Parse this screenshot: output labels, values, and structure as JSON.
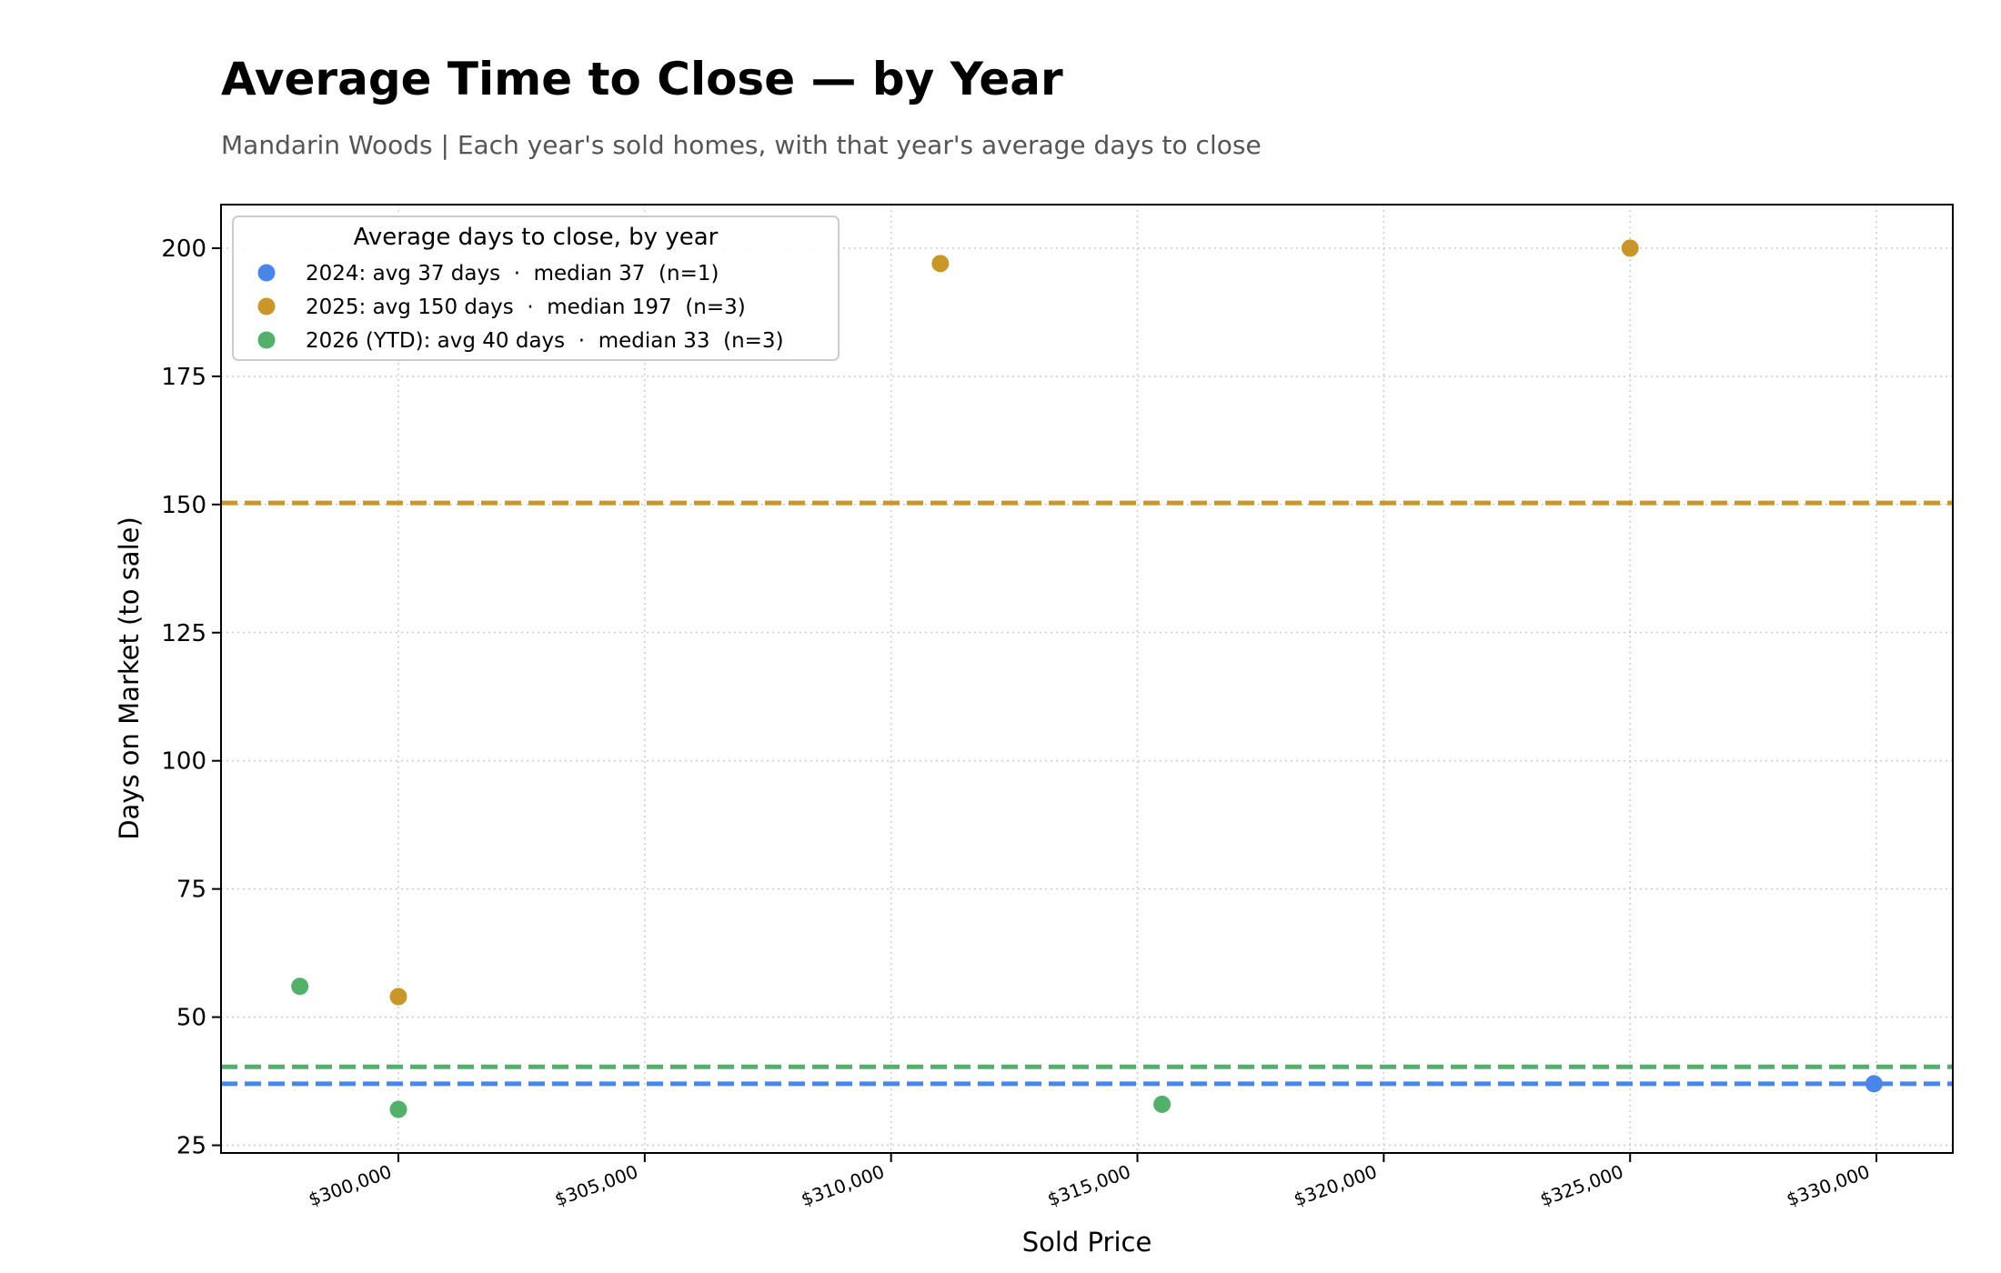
{
  "title": "Average Time to Close — by Year",
  "subtitle": "Mandarin Woods  |  Each year's sold homes, with that year's average days to close",
  "chart_data": {
    "type": "scatter",
    "xlabel": "Sold Price",
    "ylabel": "Days on Market (to sale)",
    "xlim": [
      296400,
      331550
    ],
    "ylim": [
      23.5,
      208.5
    ],
    "xticks": [
      {
        "value": 300000,
        "label": "$300,000"
      },
      {
        "value": 305000,
        "label": "$305,000"
      },
      {
        "value": 310000,
        "label": "$310,000"
      },
      {
        "value": 315000,
        "label": "$315,000"
      },
      {
        "value": 320000,
        "label": "$320,000"
      },
      {
        "value": 325000,
        "label": "$325,000"
      },
      {
        "value": 330000,
        "label": "$330,000"
      }
    ],
    "yticks": [
      {
        "value": 25,
        "label": "25"
      },
      {
        "value": 50,
        "label": "50"
      },
      {
        "value": 75,
        "label": "75"
      },
      {
        "value": 100,
        "label": "100"
      },
      {
        "value": 125,
        "label": "125"
      },
      {
        "value": 150,
        "label": "150"
      },
      {
        "value": 175,
        "label": "175"
      },
      {
        "value": 200,
        "label": "200"
      }
    ],
    "grid": true,
    "legend": {
      "title": "Average days to close, by year",
      "placement": "top-left"
    },
    "series": [
      {
        "name": "2024: avg 37 days  ·  median 37  (n=1)",
        "key": "2024",
        "color": "#4A86E8",
        "average": 37,
        "points": [
          {
            "x": 329950,
            "y": 37
          }
        ]
      },
      {
        "name": "2025: avg 150 days  ·  median 197  (n=3)",
        "key": "2025",
        "color": "#C9962A",
        "average": 150.3,
        "points": [
          {
            "x": 300000,
            "y": 54
          },
          {
            "x": 311000,
            "y": 197
          },
          {
            "x": 325000,
            "y": 200
          }
        ]
      },
      {
        "name": "2026 (YTD): avg 40 days  ·  median 33  (n=3)",
        "key": "2026",
        "color": "#52B06B",
        "average": 40.3,
        "points": [
          {
            "x": 298000,
            "y": 56
          },
          {
            "x": 300000,
            "y": 32
          },
          {
            "x": 315500,
            "y": 33
          }
        ]
      }
    ]
  }
}
